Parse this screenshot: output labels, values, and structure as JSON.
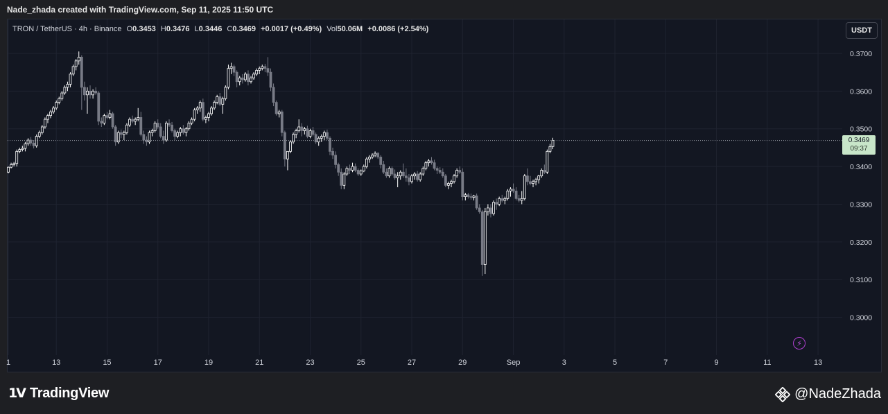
{
  "caption": "Nade_zhada created with TradingView.com, Sep 11, 2025 11:50 UTC",
  "legend": {
    "symbol": "TRON / TetherUS · 4h · Binance",
    "o_label": "O",
    "o_value": "0.3453",
    "h_label": "H",
    "h_value": "0.3476",
    "l_label": "L",
    "l_value": "0.3446",
    "c_label": "C",
    "c_value": "0.3469",
    "change": "+0.0017 (+0.49%)",
    "vol_label": "Vol",
    "vol_value": "50.06M",
    "vol_change": "+0.0086 (+2.54%)"
  },
  "currency": "USDT",
  "price_tag": {
    "price": "0.3469",
    "countdown": "09:37"
  },
  "footer": {
    "brand": "TradingView",
    "author": "@NadeZhada"
  },
  "icons": {
    "lightning": "lightning-icon",
    "brand": "tradingview-logo-icon",
    "binance": "binance-diamond-icon"
  },
  "colors": {
    "up": "#ffffff",
    "down": "#787b86",
    "background": "#131722"
  },
  "chart_data": {
    "type": "candlestick",
    "title": "",
    "xlabel": "",
    "ylabel": "",
    "ylim": [
      0.29,
      0.379
    ],
    "last_price": 0.3469,
    "grid": true,
    "y_ticks": [
      "0.3700",
      "0.3600",
      "0.3500",
      "0.3400",
      "0.3300",
      "0.3200",
      "0.3100",
      "0.3000"
    ],
    "x_ticks": [
      "1",
      "13",
      "15",
      "17",
      "19",
      "21",
      "23",
      "25",
      "27",
      "29",
      "Sep",
      "3",
      "5",
      "7",
      "9",
      "11",
      "13"
    ],
    "x_tick_index": [
      0,
      17,
      35,
      53,
      71,
      89,
      107,
      125,
      143,
      161,
      179,
      197,
      215,
      233,
      251,
      269,
      287
    ],
    "candles": [
      [
        0.3385,
        0.34,
        0.3382,
        0.3398
      ],
      [
        0.3398,
        0.341,
        0.3395,
        0.3405
      ],
      [
        0.3405,
        0.3412,
        0.34,
        0.3408
      ],
      [
        0.3408,
        0.3445,
        0.34,
        0.344
      ],
      [
        0.344,
        0.345,
        0.3435,
        0.3445
      ],
      [
        0.3445,
        0.3455,
        0.344,
        0.3448
      ],
      [
        0.3448,
        0.3465,
        0.344,
        0.346
      ],
      [
        0.346,
        0.3475,
        0.3455,
        0.347
      ],
      [
        0.347,
        0.3478,
        0.3455,
        0.3462
      ],
      [
        0.3462,
        0.347,
        0.3448,
        0.3455
      ],
      [
        0.3455,
        0.3485,
        0.345,
        0.348
      ],
      [
        0.348,
        0.3495,
        0.3475,
        0.349
      ],
      [
        0.349,
        0.351,
        0.3485,
        0.3505
      ],
      [
        0.3505,
        0.353,
        0.35,
        0.3525
      ],
      [
        0.3525,
        0.354,
        0.3515,
        0.3535
      ],
      [
        0.3535,
        0.355,
        0.3528,
        0.3545
      ],
      [
        0.3545,
        0.356,
        0.354,
        0.3555
      ],
      [
        0.3555,
        0.3575,
        0.355,
        0.357
      ],
      [
        0.357,
        0.3585,
        0.3565,
        0.358
      ],
      [
        0.358,
        0.36,
        0.3575,
        0.3595
      ],
      [
        0.3595,
        0.3615,
        0.359,
        0.361
      ],
      [
        0.361,
        0.3625,
        0.36,
        0.3618
      ],
      [
        0.3618,
        0.365,
        0.361,
        0.3645
      ],
      [
        0.3645,
        0.367,
        0.364,
        0.3665
      ],
      [
        0.3665,
        0.3685,
        0.3655,
        0.368
      ],
      [
        0.368,
        0.3705,
        0.367,
        0.369
      ],
      [
        0.369,
        0.3695,
        0.355,
        0.361
      ],
      [
        0.361,
        0.3625,
        0.3575,
        0.359
      ],
      [
        0.359,
        0.361,
        0.354,
        0.36
      ],
      [
        0.36,
        0.3615,
        0.358,
        0.359
      ],
      [
        0.359,
        0.3605,
        0.358,
        0.36
      ],
      [
        0.36,
        0.361,
        0.359,
        0.3595
      ],
      [
        0.3595,
        0.36,
        0.351,
        0.352
      ],
      [
        0.352,
        0.353,
        0.3505,
        0.3515
      ],
      [
        0.3515,
        0.354,
        0.351,
        0.3535
      ],
      [
        0.3535,
        0.3545,
        0.3525,
        0.353
      ],
      [
        0.353,
        0.355,
        0.3525,
        0.354
      ],
      [
        0.354,
        0.3545,
        0.35,
        0.3505
      ],
      [
        0.3505,
        0.351,
        0.3455,
        0.3465
      ],
      [
        0.3465,
        0.3495,
        0.346,
        0.349
      ],
      [
        0.349,
        0.3498,
        0.3475,
        0.3485
      ],
      [
        0.3485,
        0.3495,
        0.347,
        0.349
      ],
      [
        0.349,
        0.3515,
        0.3485,
        0.351
      ],
      [
        0.351,
        0.353,
        0.3505,
        0.3525
      ],
      [
        0.3525,
        0.3535,
        0.3515,
        0.352
      ],
      [
        0.352,
        0.353,
        0.351,
        0.3525
      ],
      [
        0.3525,
        0.3555,
        0.352,
        0.353
      ],
      [
        0.353,
        0.3545,
        0.348,
        0.3485
      ],
      [
        0.3485,
        0.3495,
        0.346,
        0.347
      ],
      [
        0.347,
        0.348,
        0.3455,
        0.3465
      ],
      [
        0.3465,
        0.3495,
        0.346,
        0.349
      ],
      [
        0.349,
        0.35,
        0.348,
        0.3495
      ],
      [
        0.3495,
        0.352,
        0.349,
        0.3515
      ],
      [
        0.3515,
        0.3525,
        0.35,
        0.3505
      ],
      [
        0.3505,
        0.3515,
        0.3475,
        0.348
      ],
      [
        0.348,
        0.3495,
        0.346,
        0.347
      ],
      [
        0.347,
        0.352,
        0.3465,
        0.3515
      ],
      [
        0.3515,
        0.3525,
        0.3505,
        0.351
      ],
      [
        0.351,
        0.3518,
        0.349,
        0.3495
      ],
      [
        0.3495,
        0.35,
        0.347,
        0.348
      ],
      [
        0.348,
        0.3495,
        0.3475,
        0.349
      ],
      [
        0.349,
        0.3505,
        0.348,
        0.35
      ],
      [
        0.35,
        0.351,
        0.3485,
        0.349
      ],
      [
        0.349,
        0.3505,
        0.348,
        0.35
      ],
      [
        0.35,
        0.352,
        0.3495,
        0.3515
      ],
      [
        0.3515,
        0.353,
        0.351,
        0.3525
      ],
      [
        0.3525,
        0.3555,
        0.352,
        0.355
      ],
      [
        0.355,
        0.356,
        0.354,
        0.3555
      ],
      [
        0.3555,
        0.3575,
        0.3545,
        0.357
      ],
      [
        0.357,
        0.358,
        0.352,
        0.3525
      ],
      [
        0.3525,
        0.3535,
        0.3515,
        0.353
      ],
      [
        0.353,
        0.3545,
        0.352,
        0.354
      ],
      [
        0.354,
        0.356,
        0.3535,
        0.3555
      ],
      [
        0.3555,
        0.3575,
        0.355,
        0.357
      ],
      [
        0.357,
        0.359,
        0.3565,
        0.3585
      ],
      [
        0.3585,
        0.3595,
        0.356,
        0.3565
      ],
      [
        0.3565,
        0.3585,
        0.354,
        0.358
      ],
      [
        0.358,
        0.3615,
        0.3575,
        0.361
      ],
      [
        0.361,
        0.367,
        0.3605,
        0.366
      ],
      [
        0.366,
        0.3675,
        0.3645,
        0.3665
      ],
      [
        0.3665,
        0.367,
        0.364,
        0.365
      ],
      [
        0.365,
        0.3655,
        0.361,
        0.3625
      ],
      [
        0.3625,
        0.364,
        0.3615,
        0.3635
      ],
      [
        0.3635,
        0.3645,
        0.362,
        0.363
      ],
      [
        0.363,
        0.365,
        0.3625,
        0.3645
      ],
      [
        0.3645,
        0.3655,
        0.3615,
        0.3625
      ],
      [
        0.3625,
        0.364,
        0.362,
        0.3635
      ],
      [
        0.3635,
        0.365,
        0.363,
        0.3645
      ],
      [
        0.3645,
        0.366,
        0.364,
        0.3655
      ],
      [
        0.3655,
        0.3665,
        0.3645,
        0.366
      ],
      [
        0.366,
        0.367,
        0.3655,
        0.3665
      ],
      [
        0.3665,
        0.3672,
        0.365,
        0.366
      ],
      [
        0.366,
        0.369,
        0.364,
        0.365
      ],
      [
        0.365,
        0.366,
        0.36,
        0.361
      ],
      [
        0.361,
        0.362,
        0.356,
        0.357
      ],
      [
        0.357,
        0.3575,
        0.3535,
        0.354
      ],
      [
        0.354,
        0.355,
        0.353,
        0.3545
      ],
      [
        0.3545,
        0.355,
        0.348,
        0.349
      ],
      [
        0.349,
        0.3495,
        0.34,
        0.342
      ],
      [
        0.342,
        0.3435,
        0.339,
        0.344
      ],
      [
        0.344,
        0.347,
        0.3435,
        0.3465
      ],
      [
        0.3465,
        0.349,
        0.346,
        0.3485
      ],
      [
        0.3485,
        0.35,
        0.3475,
        0.3495
      ],
      [
        0.3495,
        0.3525,
        0.349,
        0.3505
      ],
      [
        0.3505,
        0.3515,
        0.348,
        0.3495
      ],
      [
        0.3495,
        0.3505,
        0.3485,
        0.35
      ],
      [
        0.35,
        0.3508,
        0.3475,
        0.348
      ],
      [
        0.348,
        0.35,
        0.3475,
        0.3495
      ],
      [
        0.3495,
        0.3505,
        0.348,
        0.3485
      ],
      [
        0.3485,
        0.349,
        0.346,
        0.3465
      ],
      [
        0.3465,
        0.348,
        0.3455,
        0.3475
      ],
      [
        0.3475,
        0.3485,
        0.3465,
        0.348
      ],
      [
        0.348,
        0.3495,
        0.347,
        0.349
      ],
      [
        0.349,
        0.3498,
        0.347,
        0.3475
      ],
      [
        0.3475,
        0.348,
        0.343,
        0.344
      ],
      [
        0.344,
        0.345,
        0.342,
        0.343
      ],
      [
        0.343,
        0.344,
        0.3395,
        0.3405
      ],
      [
        0.3405,
        0.341,
        0.3375,
        0.3385
      ],
      [
        0.3385,
        0.3395,
        0.334,
        0.335
      ],
      [
        0.335,
        0.3385,
        0.334,
        0.338
      ],
      [
        0.338,
        0.34,
        0.3375,
        0.3395
      ],
      [
        0.3395,
        0.3405,
        0.338,
        0.339
      ],
      [
        0.339,
        0.341,
        0.3385,
        0.34
      ],
      [
        0.34,
        0.3408,
        0.3385,
        0.339
      ],
      [
        0.339,
        0.3395,
        0.3375,
        0.338
      ],
      [
        0.338,
        0.3392,
        0.3375,
        0.3388
      ],
      [
        0.3388,
        0.3405,
        0.3385,
        0.34
      ],
      [
        0.34,
        0.3425,
        0.3395,
        0.342
      ],
      [
        0.342,
        0.343,
        0.341,
        0.3425
      ],
      [
        0.3425,
        0.3435,
        0.342,
        0.343
      ],
      [
        0.343,
        0.344,
        0.3425,
        0.3435
      ],
      [
        0.3435,
        0.3438,
        0.342,
        0.3425
      ],
      [
        0.3425,
        0.343,
        0.3395,
        0.3405
      ],
      [
        0.3405,
        0.3415,
        0.338,
        0.3385
      ],
      [
        0.3385,
        0.3395,
        0.337,
        0.3375
      ],
      [
        0.3375,
        0.34,
        0.337,
        0.3395
      ],
      [
        0.3395,
        0.34,
        0.3375,
        0.338
      ],
      [
        0.338,
        0.3392,
        0.3365,
        0.337
      ],
      [
        0.337,
        0.3385,
        0.3345,
        0.3375
      ],
      [
        0.3375,
        0.339,
        0.3365,
        0.3385
      ],
      [
        0.3385,
        0.3408,
        0.337,
        0.3375
      ],
      [
        0.3375,
        0.3395,
        0.336,
        0.337
      ],
      [
        0.337,
        0.338,
        0.335,
        0.336
      ],
      [
        0.336,
        0.338,
        0.3355,
        0.3375
      ],
      [
        0.3375,
        0.3385,
        0.3365,
        0.338
      ],
      [
        0.338,
        0.3388,
        0.336,
        0.3365
      ],
      [
        0.3365,
        0.3385,
        0.336,
        0.338
      ],
      [
        0.338,
        0.34,
        0.3375,
        0.3395
      ],
      [
        0.3395,
        0.3415,
        0.339,
        0.341
      ],
      [
        0.341,
        0.342,
        0.34,
        0.3415
      ],
      [
        0.3415,
        0.3425,
        0.3405,
        0.341
      ],
      [
        0.341,
        0.3418,
        0.339,
        0.3395
      ],
      [
        0.3395,
        0.34,
        0.338,
        0.339
      ],
      [
        0.339,
        0.3398,
        0.338,
        0.3385
      ],
      [
        0.3385,
        0.3395,
        0.337,
        0.3375
      ],
      [
        0.3375,
        0.338,
        0.3345,
        0.335
      ],
      [
        0.335,
        0.336,
        0.334,
        0.3355
      ],
      [
        0.3355,
        0.3365,
        0.3345,
        0.336
      ],
      [
        0.336,
        0.338,
        0.3355,
        0.3375
      ],
      [
        0.3375,
        0.3395,
        0.337,
        0.339
      ],
      [
        0.339,
        0.34,
        0.338,
        0.3385
      ],
      [
        0.3385,
        0.3395,
        0.331,
        0.332
      ],
      [
        0.332,
        0.333,
        0.331,
        0.3325
      ],
      [
        0.3325,
        0.333,
        0.3315,
        0.332
      ],
      [
        0.332,
        0.3328,
        0.3312,
        0.3318
      ],
      [
        0.3318,
        0.3325,
        0.331,
        0.3322
      ],
      [
        0.3322,
        0.3328,
        0.3285,
        0.329
      ],
      [
        0.329,
        0.33,
        0.3275,
        0.328
      ],
      [
        0.328,
        0.3285,
        0.311,
        0.314
      ],
      [
        0.314,
        0.329,
        0.3115,
        0.328
      ],
      [
        0.328,
        0.33,
        0.327,
        0.329
      ],
      [
        0.329,
        0.33,
        0.3265,
        0.3275
      ],
      [
        0.3275,
        0.331,
        0.327,
        0.3305
      ],
      [
        0.3305,
        0.3315,
        0.3285,
        0.33
      ],
      [
        0.33,
        0.332,
        0.3295,
        0.3315
      ],
      [
        0.3315,
        0.3325,
        0.3305,
        0.331
      ],
      [
        0.331,
        0.332,
        0.33,
        0.3315
      ],
      [
        0.3315,
        0.334,
        0.331,
        0.3335
      ],
      [
        0.3335,
        0.3345,
        0.332,
        0.334
      ],
      [
        0.334,
        0.3355,
        0.333,
        0.3335
      ],
      [
        0.3335,
        0.3345,
        0.331,
        0.3315
      ],
      [
        0.3315,
        0.3325,
        0.3305,
        0.331
      ],
      [
        0.331,
        0.3335,
        0.33,
        0.3315
      ],
      [
        0.3315,
        0.338,
        0.331,
        0.3375
      ],
      [
        0.3375,
        0.3395,
        0.335,
        0.336
      ],
      [
        0.336,
        0.3375,
        0.335,
        0.3355
      ],
      [
        0.3355,
        0.3365,
        0.3345,
        0.336
      ],
      [
        0.336,
        0.337,
        0.335,
        0.3365
      ],
      [
        0.3365,
        0.3378,
        0.3355,
        0.3375
      ],
      [
        0.3375,
        0.3395,
        0.337,
        0.339
      ],
      [
        0.339,
        0.3405,
        0.338,
        0.3385
      ],
      [
        0.3385,
        0.3445,
        0.338,
        0.344
      ],
      [
        0.344,
        0.346,
        0.3435,
        0.3453
      ],
      [
        0.3453,
        0.3476,
        0.3446,
        0.3469
      ]
    ]
  }
}
